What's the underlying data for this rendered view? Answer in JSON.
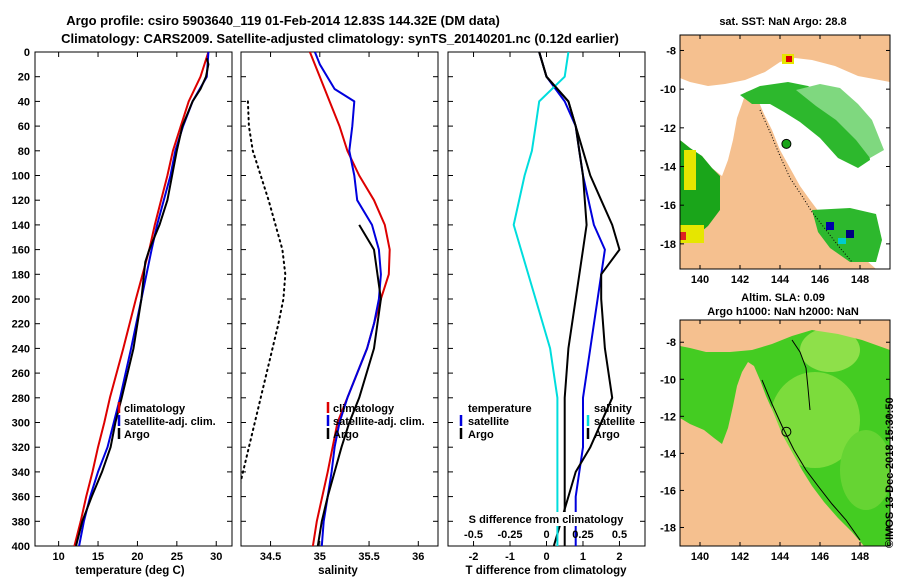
{
  "header": {
    "line1": "Argo profile: csiro 5903640_119 01-Feb-2014 12.83S 144.32E (DM data)",
    "line2": "Climatology: CARS2009. Satellite-adjusted climatology: synTS_20140201.nc (0.12d earlier)"
  },
  "colors": {
    "climatology": "#dd0000",
    "satellite": "#0000dd",
    "argo": "#000000",
    "sat_salinity": "#00dddd",
    "land": "#f5c08f"
  },
  "depth_ticks": [
    "0",
    "20",
    "40",
    "60",
    "80",
    "100",
    "120",
    "140",
    "160",
    "180",
    "200",
    "220",
    "240",
    "260",
    "280",
    "300",
    "320",
    "340",
    "360",
    "380",
    "400"
  ],
  "chart_data": [
    {
      "type": "line",
      "panel": "temperature",
      "xlabel": "temperature (deg C)",
      "ylabel": "depth (m)",
      "xlim": [
        7,
        32
      ],
      "ylim": [
        400,
        0
      ],
      "x_ticks": [
        "10",
        "15",
        "20",
        "25",
        "30"
      ],
      "legend": [
        "climatology",
        "satellite-adj. clim.",
        "Argo"
      ],
      "series": [
        {
          "name": "climatology",
          "depth": [
            0,
            20,
            40,
            60,
            80,
            100,
            140,
            160,
            200,
            240,
            280,
            300,
            320,
            340,
            360,
            380,
            400
          ],
          "values": [
            29.0,
            28.0,
            26.5,
            25.5,
            24.5,
            23.8,
            22.2,
            21.5,
            19.8,
            18.2,
            16.5,
            15.8,
            15.0,
            14.3,
            13.5,
            12.8,
            12.0
          ]
        },
        {
          "name": "satellite-adj. clim.",
          "depth": [
            0,
            20,
            40,
            60,
            80,
            100,
            140,
            160,
            200,
            240,
            280,
            300,
            320,
            340,
            360,
            380,
            400
          ],
          "values": [
            29.0,
            28.8,
            27.0,
            25.8,
            24.8,
            24.2,
            22.5,
            21.8,
            20.5,
            19.2,
            17.8,
            17.0,
            16.2,
            15.0,
            14.0,
            13.2,
            12.6
          ]
        },
        {
          "name": "Argo",
          "depth": [
            5,
            10,
            20,
            30,
            40,
            60,
            80,
            100,
            120,
            140,
            160,
            170,
            200,
            240,
            280,
            300,
            320,
            340,
            360,
            380,
            400
          ],
          "values": [
            28.8,
            29.0,
            28.7,
            28.0,
            27.0,
            25.7,
            25.0,
            24.4,
            23.8,
            22.8,
            21.5,
            21.0,
            20.5,
            19.5,
            18.0,
            17.2,
            16.6,
            15.5,
            14.2,
            13.0,
            12.2
          ]
        }
      ]
    },
    {
      "type": "line",
      "panel": "salinity",
      "xlabel": "salinity",
      "xlim": [
        34.2,
        36.2
      ],
      "ylim": [
        400,
        0
      ],
      "x_ticks": [
        "34.5",
        "35",
        "35.5",
        "36"
      ],
      "legend": [
        "climatology",
        "satellite-adj. clim.",
        "Argo"
      ],
      "series": [
        {
          "name": "climatology",
          "depth": [
            0,
            20,
            40,
            60,
            80,
            100,
            120,
            140,
            160,
            180,
            200,
            240,
            280,
            300,
            340,
            380,
            400
          ],
          "values": [
            34.9,
            35.0,
            35.1,
            35.2,
            35.28,
            35.4,
            35.55,
            35.66,
            35.71,
            35.7,
            35.62,
            35.48,
            35.28,
            35.18,
            35.08,
            34.97,
            34.93
          ]
        },
        {
          "name": "satellite-adj. clim.",
          "depth": [
            0,
            10,
            30,
            40,
            60,
            80,
            100,
            120,
            140,
            160,
            180,
            200,
            220,
            240,
            260,
            280,
            300,
            320,
            340,
            360,
            380,
            400
          ],
          "values": [
            34.95,
            35.0,
            35.15,
            35.35,
            35.33,
            35.3,
            35.35,
            35.38,
            35.53,
            35.6,
            35.62,
            35.6,
            35.55,
            35.48,
            35.38,
            35.28,
            35.2,
            35.15,
            35.12,
            35.08,
            35.04,
            35.02
          ]
        },
        {
          "name": "Argo",
          "depth": [
            140,
            160,
            200,
            240,
            280,
            300,
            320,
            340,
            360,
            380,
            400
          ],
          "values": [
            35.4,
            35.55,
            35.62,
            35.55,
            35.4,
            35.3,
            35.22,
            35.15,
            35.08,
            35.02,
            34.98
          ]
        },
        {
          "name": "climatology T-S (dotted)",
          "depth": [
            40,
            60,
            80,
            100,
            120,
            140,
            160,
            180,
            200,
            220,
            240,
            260,
            280,
            300,
            320,
            340,
            360,
            380,
            400
          ],
          "values": [
            34.27,
            34.28,
            34.32,
            34.4,
            34.48,
            34.55,
            34.62,
            34.65,
            34.63,
            34.58,
            34.52,
            34.46,
            34.4,
            34.34,
            34.28,
            34.22,
            34.16,
            34.1,
            34.05
          ]
        }
      ]
    },
    {
      "type": "line",
      "panel": "difference from climatology",
      "xlabel": "T difference from climatology",
      "secondary_xlabel": "S difference from climatology",
      "xlim": [
        -2.7,
        2.7
      ],
      "ylim": [
        400,
        0
      ],
      "x_ticks": [
        "-2",
        "-1",
        "0",
        "1",
        "2"
      ],
      "secondary_x_ticks": [
        "-0.5",
        "-0.25",
        "0",
        "0.25",
        "0.5"
      ],
      "legend_left": [
        "temperature",
        "satellite",
        "Argo"
      ],
      "legend_right": [
        "salinity",
        "satellite",
        "Argo"
      ],
      "series": [
        {
          "name": "T satellite",
          "depth": [
            0,
            20,
            40,
            60,
            80,
            100,
            140,
            160,
            200,
            240,
            280,
            300,
            320,
            340,
            360,
            380,
            400
          ],
          "values": [
            -0.2,
            0.0,
            0.5,
            0.8,
            0.9,
            1.0,
            1.3,
            1.6,
            1.4,
            1.2,
            1.0,
            1.0,
            1.0,
            0.9,
            0.8,
            0.8,
            0.8
          ]
        },
        {
          "name": "T Argo",
          "depth": [
            0,
            20,
            40,
            60,
            80,
            100,
            120,
            140,
            160,
            180,
            200,
            240,
            280,
            300,
            320,
            340,
            360,
            380,
            400
          ],
          "values": [
            -0.2,
            0.0,
            0.6,
            0.8,
            1.0,
            1.2,
            1.5,
            1.8,
            2.0,
            1.5,
            1.5,
            1.6,
            1.8,
            1.5,
            1.2,
            0.8,
            0.6,
            0.4,
            0.2
          ]
        },
        {
          "name": "S satellite",
          "depth": [
            0,
            20,
            40,
            60,
            80,
            100,
            140,
            160,
            200,
            240,
            280,
            300,
            320,
            340,
            360,
            380,
            400
          ],
          "values": [
            0.6,
            0.5,
            -0.2,
            -0.3,
            -0.4,
            -0.6,
            -0.9,
            -0.7,
            -0.3,
            0.1,
            0.3,
            0.3,
            0.3,
            0.3,
            0.3,
            0.3,
            0.3
          ]
        },
        {
          "name": "S Argo",
          "depth": [
            0,
            20,
            40,
            60,
            80,
            100,
            140,
            160,
            200,
            240,
            280,
            300,
            320,
            340,
            360,
            380,
            400
          ],
          "values": [
            -0.2,
            0.0,
            0.6,
            0.8,
            0.9,
            1.0,
            1.1,
            1.0,
            0.8,
            0.6,
            0.5,
            0.5,
            0.5,
            0.5,
            0.5,
            0.5,
            0.5
          ]
        }
      ]
    }
  ],
  "maps": {
    "top": {
      "title": "sat. SST: NaN Argo: 28.8",
      "lat_ticks": [
        "-8",
        "-10",
        "-12",
        "-14",
        "-16",
        "-18"
      ],
      "lon_ticks": [
        "140",
        "142",
        "144",
        "146",
        "148"
      ],
      "argo_lon": 144.32,
      "argo_lat": -12.83
    },
    "bottom": {
      "title1": "Altim. SLA: 0.09",
      "title2": "Argo h1000: NaN h2000: NaN",
      "lat_ticks": [
        "-8",
        "-10",
        "-12",
        "-14",
        "-16",
        "-18"
      ],
      "lon_ticks": [
        "140",
        "142",
        "144",
        "146",
        "148"
      ],
      "argo_lon": 144.32,
      "argo_lat": -12.83
    }
  },
  "footer": {
    "stamp": "©IMOS 13-Dec-2018 15:30:50"
  }
}
